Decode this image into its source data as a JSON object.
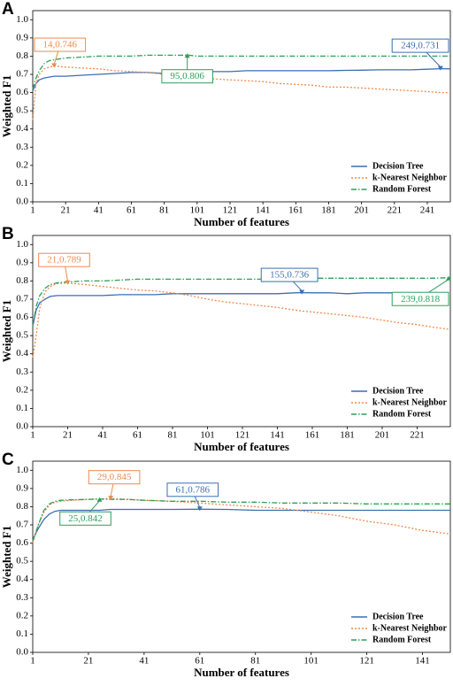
{
  "chart_data": [
    {
      "type": "line",
      "panel": "A",
      "xlabel": "Number of features",
      "ylabel": "Weighted F1",
      "xlim": [
        1,
        255
      ],
      "xticks": [
        1,
        21,
        41,
        61,
        81,
        101,
        121,
        141,
        161,
        181,
        201,
        221,
        241
      ],
      "ylim": [
        0,
        1.05
      ],
      "yticks": [
        {
          "value": 0,
          "label": "0.0"
        },
        0.1,
        0.2,
        0.3,
        0.4,
        0.5,
        0.6,
        0.7,
        0.8,
        0.9,
        {
          "value": 1,
          "label": "1.0"
        }
      ],
      "legend": "lower right",
      "x": [
        1,
        3,
        5,
        8,
        11,
        14,
        21,
        31,
        41,
        51,
        61,
        71,
        81,
        91,
        95,
        101,
        111,
        121,
        131,
        141,
        151,
        161,
        171,
        181,
        191,
        201,
        211,
        221,
        231,
        241,
        249,
        255
      ],
      "series": [
        {
          "name": "Decision Tree",
          "color": "#3a6fb3",
          "style": "solid",
          "values": [
            0.61,
            0.65,
            0.67,
            0.68,
            0.685,
            0.69,
            0.69,
            0.695,
            0.7,
            0.705,
            0.71,
            0.71,
            0.705,
            0.71,
            0.71,
            0.71,
            0.715,
            0.715,
            0.72,
            0.72,
            0.72,
            0.72,
            0.72,
            0.72,
            0.722,
            0.723,
            0.725,
            0.725,
            0.725,
            0.728,
            0.731,
            0.73
          ]
        },
        {
          "name": "k-Nearest Neighbor",
          "color": "#f08a4b",
          "style": "dotted",
          "values": [
            0.45,
            0.65,
            0.7,
            0.73,
            0.74,
            0.746,
            0.74,
            0.735,
            0.73,
            0.72,
            0.715,
            0.71,
            0.7,
            0.695,
            0.69,
            0.685,
            0.675,
            0.67,
            0.665,
            0.66,
            0.65,
            0.645,
            0.64,
            0.63,
            0.63,
            0.625,
            0.62,
            0.615,
            0.61,
            0.605,
            0.6,
            0.6
          ]
        },
        {
          "name": "Random Forest",
          "color": "#2ca05a",
          "style": "dashdot",
          "values": [
            0.62,
            0.68,
            0.72,
            0.76,
            0.775,
            0.78,
            0.79,
            0.795,
            0.8,
            0.8,
            0.8,
            0.805,
            0.805,
            0.805,
            0.806,
            0.8,
            0.8,
            0.8,
            0.8,
            0.8,
            0.8,
            0.8,
            0.8,
            0.8,
            0.8,
            0.8,
            0.8,
            0.8,
            0.8,
            0.8,
            0.8,
            0.8
          ]
        }
      ],
      "annotations": [
        {
          "text": "14,0.746",
          "x": 14,
          "y": 0.746,
          "color": "#f08a4b"
        },
        {
          "text": "249,0.731",
          "x": 249,
          "y": 0.731,
          "color": "#3a6fb3"
        },
        {
          "text": "95,0.806",
          "x": 95,
          "y": 0.806,
          "color": "#2ca05a"
        }
      ]
    },
    {
      "type": "line",
      "panel": "B",
      "xlabel": "Number of features",
      "ylabel": "Weighted F1",
      "xlim": [
        1,
        240
      ],
      "xticks": [
        1,
        21,
        41,
        61,
        81,
        101,
        121,
        141,
        161,
        181,
        201,
        221
      ],
      "ylim": [
        0,
        1.05
      ],
      "yticks": [
        {
          "value": 0,
          "label": "0.0"
        },
        0.1,
        0.2,
        0.3,
        0.4,
        0.5,
        0.6,
        0.7,
        0.8,
        0.9,
        {
          "value": 1,
          "label": "1.0"
        }
      ],
      "legend": "lower right",
      "x": [
        1,
        3,
        5,
        8,
        11,
        15,
        21,
        31,
        41,
        51,
        61,
        71,
        81,
        91,
        101,
        111,
        121,
        131,
        141,
        151,
        155,
        161,
        171,
        181,
        191,
        201,
        211,
        221,
        231,
        239
      ],
      "series": [
        {
          "name": "Decision Tree",
          "color": "#3a6fb3",
          "style": "solid",
          "values": [
            0.55,
            0.64,
            0.68,
            0.7,
            0.715,
            0.72,
            0.72,
            0.72,
            0.72,
            0.725,
            0.725,
            0.725,
            0.73,
            0.73,
            0.73,
            0.73,
            0.73,
            0.73,
            0.73,
            0.735,
            0.736,
            0.735,
            0.735,
            0.73,
            0.735,
            0.735,
            0.735,
            0.735,
            0.735,
            0.735
          ]
        },
        {
          "name": "k-Nearest Neighbor",
          "color": "#f08a4b",
          "style": "dotted",
          "values": [
            0.38,
            0.5,
            0.65,
            0.74,
            0.77,
            0.785,
            0.789,
            0.78,
            0.77,
            0.76,
            0.75,
            0.745,
            0.735,
            0.72,
            0.7,
            0.685,
            0.675,
            0.665,
            0.655,
            0.64,
            0.635,
            0.63,
            0.62,
            0.61,
            0.6,
            0.585,
            0.57,
            0.56,
            0.545,
            0.535
          ]
        },
        {
          "name": "Random Forest",
          "color": "#2ca05a",
          "style": "dashdot",
          "values": [
            0.55,
            0.66,
            0.72,
            0.76,
            0.78,
            0.79,
            0.795,
            0.8,
            0.8,
            0.805,
            0.81,
            0.81,
            0.81,
            0.81,
            0.81,
            0.81,
            0.81,
            0.81,
            0.815,
            0.815,
            0.815,
            0.815,
            0.815,
            0.815,
            0.815,
            0.815,
            0.815,
            0.815,
            0.815,
            0.818
          ]
        }
      ],
      "annotations": [
        {
          "text": "21,0.789",
          "x": 21,
          "y": 0.789,
          "color": "#f08a4b"
        },
        {
          "text": "155,0.736",
          "x": 155,
          "y": 0.736,
          "color": "#3a6fb3"
        },
        {
          "text": "239,0.818",
          "x": 239,
          "y": 0.818,
          "color": "#2ca05a"
        }
      ]
    },
    {
      "type": "line",
      "panel": "C",
      "xlabel": "Number of features",
      "ylabel": "Weighted F1",
      "xlim": [
        1,
        151
      ],
      "xticks": [
        1,
        21,
        41,
        61,
        81,
        101,
        121,
        141
      ],
      "ylim": [
        0,
        1.05
      ],
      "yticks": [
        {
          "value": 0,
          "label": "0.0"
        },
        0.1,
        0.2,
        0.3,
        0.4,
        0.5,
        0.6,
        0.7,
        0.8,
        0.9,
        {
          "value": 1,
          "label": "1.0"
        }
      ],
      "legend": "lower right",
      "x": [
        1,
        3,
        5,
        7,
        9,
        11,
        15,
        21,
        25,
        29,
        35,
        41,
        51,
        61,
        71,
        81,
        91,
        101,
        111,
        121,
        131,
        141,
        151
      ],
      "series": [
        {
          "name": "Decision Tree",
          "color": "#3a6fb3",
          "style": "solid",
          "values": [
            0.62,
            0.68,
            0.73,
            0.76,
            0.775,
            0.78,
            0.78,
            0.78,
            0.78,
            0.785,
            0.785,
            0.785,
            0.785,
            0.786,
            0.785,
            0.78,
            0.78,
            0.78,
            0.78,
            0.78,
            0.78,
            0.78,
            0.78
          ]
        },
        {
          "name": "k-Nearest Neighbor",
          "color": "#f08a4b",
          "style": "dotted",
          "values": [
            0.6,
            0.7,
            0.77,
            0.81,
            0.825,
            0.83,
            0.835,
            0.84,
            0.843,
            0.845,
            0.84,
            0.835,
            0.83,
            0.82,
            0.81,
            0.8,
            0.79,
            0.77,
            0.75,
            0.72,
            0.7,
            0.67,
            0.65
          ]
        },
        {
          "name": "Random Forest",
          "color": "#2ca05a",
          "style": "dashdot",
          "values": [
            0.61,
            0.7,
            0.78,
            0.815,
            0.83,
            0.835,
            0.838,
            0.84,
            0.842,
            0.84,
            0.84,
            0.835,
            0.83,
            0.83,
            0.825,
            0.825,
            0.82,
            0.82,
            0.82,
            0.815,
            0.815,
            0.815,
            0.815
          ]
        }
      ],
      "annotations": [
        {
          "text": "29,0.845",
          "x": 29,
          "y": 0.845,
          "color": "#f08a4b"
        },
        {
          "text": "61,0.786",
          "x": 61,
          "y": 0.786,
          "color": "#3a6fb3"
        },
        {
          "text": "25,0.842",
          "x": 25,
          "y": 0.842,
          "color": "#2ca05a"
        }
      ]
    }
  ]
}
